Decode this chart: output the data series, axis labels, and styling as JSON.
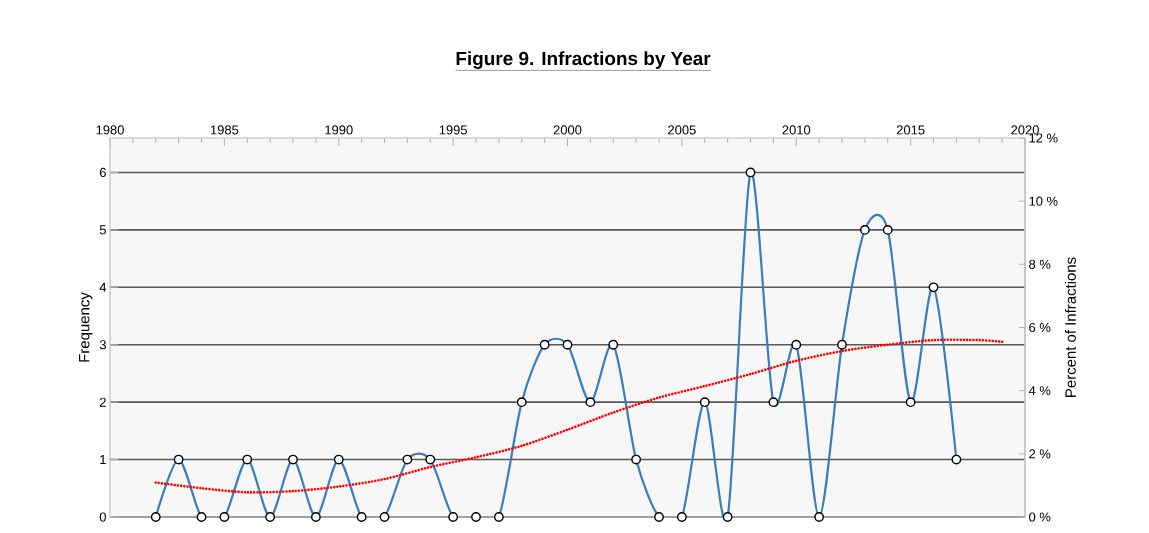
{
  "chart_data": {
    "type": "line",
    "title": "Figure 9.   Infractions by Year",
    "ylabel": "Frequency",
    "y2label": "Percent of Infractions",
    "x": [
      1982,
      1983,
      1984,
      1985,
      1986,
      1987,
      1988,
      1989,
      1990,
      1991,
      1992,
      1993,
      1994,
      1995,
      1996,
      1997,
      1998,
      1999,
      2000,
      2001,
      2002,
      2003,
      2004,
      2005,
      2006,
      2007,
      2008,
      2009,
      2010,
      2011,
      2012,
      2013,
      2014,
      2015,
      2016,
      2017
    ],
    "series": [
      {
        "color": "#3a7dbf",
        "marker": "circle",
        "values": [
          0,
          1,
          0,
          0,
          1,
          0,
          1,
          0,
          1,
          0,
          0,
          1,
          1,
          0,
          0,
          0,
          2,
          3,
          3,
          2,
          3,
          1,
          0,
          0,
          2,
          0,
          6,
          2,
          3,
          0,
          3,
          5,
          5,
          2,
          4,
          1
        ]
      },
      {
        "type": "line",
        "color": "#ff0000",
        "line_style": "dotted",
        "marker": "none",
        "x": [
          1982,
          1984,
          1986,
          1988,
          1990,
          1992,
          1994,
          1996,
          1998,
          2000,
          2002,
          2004,
          2006,
          2008,
          2010,
          2012,
          2014,
          2016,
          2018,
          2019
        ],
        "values": [
          0.6,
          0.5,
          0.43,
          0.45,
          0.53,
          0.66,
          0.87,
          1.04,
          1.24,
          1.52,
          1.82,
          2.08,
          2.28,
          2.49,
          2.72,
          2.89,
          3.0,
          3.08,
          3.08,
          3.05
        ]
      }
    ],
    "xlim": [
      1980,
      2020
    ],
    "xticks": [
      1980,
      1985,
      1990,
      1995,
      2000,
      2005,
      2010,
      2015,
      2020
    ],
    "ylim": [
      0,
      6.6
    ],
    "yticks": [
      0,
      1,
      2,
      3,
      4,
      5,
      6
    ],
    "y2lim": [
      0,
      12
    ],
    "y2ticks": [
      {
        "value": 0,
        "label": "0 %"
      },
      {
        "value": 2,
        "label": "2 %"
      },
      {
        "value": 4,
        "label": "4 %"
      },
      {
        "value": 6,
        "label": "6 %"
      },
      {
        "value": 8,
        "label": "8 %"
      },
      {
        "value": 10,
        "label": "10 %"
      },
      {
        "value": 12,
        "label": "12 %"
      }
    ],
    "grid": "y"
  }
}
